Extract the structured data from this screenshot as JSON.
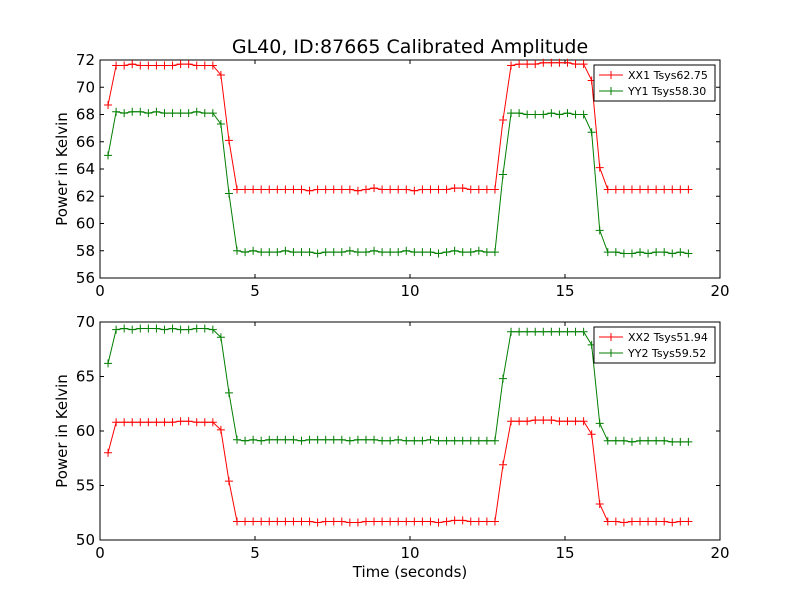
{
  "title": "GL40, ID:87665 Calibrated Amplitude",
  "chart_data": [
    {
      "type": "line",
      "xlabel": "",
      "ylabel": "Power in Kelvin",
      "xlim": [
        0,
        20
      ],
      "ylim": [
        56,
        72
      ],
      "xticks": [
        0,
        5,
        10,
        15,
        20
      ],
      "yticks": [
        56,
        58,
        60,
        62,
        64,
        66,
        68,
        70,
        72
      ],
      "grid": false,
      "legend_position": "top-right",
      "x": [
        0.26,
        0.52,
        0.78,
        1.04,
        1.3,
        1.56,
        1.82,
        2.08,
        2.34,
        2.6,
        2.86,
        3.12,
        3.38,
        3.64,
        3.9,
        4.16,
        4.42,
        4.68,
        4.94,
        5.2,
        5.46,
        5.72,
        5.98,
        6.24,
        6.5,
        6.76,
        7.02,
        7.28,
        7.54,
        7.8,
        8.06,
        8.32,
        8.58,
        8.84,
        9.1,
        9.36,
        9.62,
        9.88,
        10.14,
        10.4,
        10.66,
        10.92,
        11.18,
        11.44,
        11.7,
        11.96,
        12.22,
        12.48,
        12.74,
        13.0,
        13.26,
        13.52,
        13.78,
        14.04,
        14.3,
        14.56,
        14.82,
        15.08,
        15.34,
        15.6,
        15.86,
        16.12,
        16.38,
        16.64,
        16.9,
        17.16,
        17.42,
        17.68,
        17.94,
        18.2,
        18.46,
        18.72,
        18.98
      ],
      "series": [
        {
          "name": "XX1 Tsys62.75",
          "color": "#ff0000",
          "values": [
            68.7,
            71.6,
            71.6,
            71.7,
            71.6,
            71.6,
            71.6,
            71.6,
            71.6,
            71.7,
            71.7,
            71.6,
            71.6,
            71.6,
            70.9,
            66.1,
            62.5,
            62.5,
            62.5,
            62.5,
            62.5,
            62.5,
            62.5,
            62.5,
            62.5,
            62.4,
            62.5,
            62.5,
            62.5,
            62.5,
            62.5,
            62.4,
            62.5,
            62.6,
            62.5,
            62.5,
            62.5,
            62.5,
            62.4,
            62.5,
            62.5,
            62.5,
            62.5,
            62.6,
            62.6,
            62.5,
            62.5,
            62.5,
            62.5,
            67.6,
            71.6,
            71.7,
            71.7,
            71.7,
            71.8,
            71.8,
            71.8,
            71.8,
            71.7,
            71.7,
            70.5,
            64.1,
            62.5,
            62.5,
            62.5,
            62.5,
            62.5,
            62.5,
            62.5,
            62.5,
            62.5,
            62.5,
            62.5
          ]
        },
        {
          "name": "YY1 Tsys58.30",
          "color": "#007f00",
          "values": [
            65.0,
            68.2,
            68.1,
            68.2,
            68.2,
            68.1,
            68.2,
            68.1,
            68.1,
            68.1,
            68.1,
            68.2,
            68.1,
            68.1,
            67.3,
            62.2,
            58.0,
            57.9,
            58.0,
            57.9,
            57.9,
            57.9,
            58.0,
            57.9,
            57.9,
            57.9,
            57.8,
            57.9,
            57.9,
            57.9,
            58.0,
            57.9,
            57.9,
            58.0,
            57.9,
            57.9,
            57.9,
            58.0,
            57.9,
            57.9,
            57.9,
            57.8,
            57.9,
            58.0,
            57.9,
            57.9,
            58.0,
            57.9,
            57.9,
            63.6,
            68.1,
            68.1,
            68.0,
            68.0,
            68.0,
            68.1,
            68.0,
            68.1,
            68.0,
            68.0,
            66.7,
            59.5,
            57.9,
            57.9,
            57.8,
            57.8,
            57.9,
            57.8,
            57.9,
            57.9,
            57.8,
            57.9,
            57.8
          ]
        }
      ]
    },
    {
      "type": "line",
      "xlabel": "Time (seconds)",
      "ylabel": "Power in Kelvin",
      "xlim": [
        0,
        20
      ],
      "ylim": [
        50,
        70
      ],
      "xticks": [
        0,
        5,
        10,
        15,
        20
      ],
      "yticks": [
        50,
        55,
        60,
        65,
        70
      ],
      "grid": false,
      "legend_position": "top-right",
      "x": [
        0.26,
        0.52,
        0.78,
        1.04,
        1.3,
        1.56,
        1.82,
        2.08,
        2.34,
        2.6,
        2.86,
        3.12,
        3.38,
        3.64,
        3.9,
        4.16,
        4.42,
        4.68,
        4.94,
        5.2,
        5.46,
        5.72,
        5.98,
        6.24,
        6.5,
        6.76,
        7.02,
        7.28,
        7.54,
        7.8,
        8.06,
        8.32,
        8.58,
        8.84,
        9.1,
        9.36,
        9.62,
        9.88,
        10.14,
        10.4,
        10.66,
        10.92,
        11.18,
        11.44,
        11.7,
        11.96,
        12.22,
        12.48,
        12.74,
        13.0,
        13.26,
        13.52,
        13.78,
        14.04,
        14.3,
        14.56,
        14.82,
        15.08,
        15.34,
        15.6,
        15.86,
        16.12,
        16.38,
        16.64,
        16.9,
        17.16,
        17.42,
        17.68,
        17.94,
        18.2,
        18.46,
        18.72,
        18.98
      ],
      "series": [
        {
          "name": "XX2 Tsys51.94",
          "color": "#ff0000",
          "values": [
            58.0,
            60.8,
            60.8,
            60.8,
            60.8,
            60.8,
            60.8,
            60.8,
            60.8,
            60.9,
            60.9,
            60.8,
            60.8,
            60.8,
            60.1,
            55.4,
            51.7,
            51.7,
            51.7,
            51.7,
            51.7,
            51.7,
            51.7,
            51.7,
            51.7,
            51.7,
            51.6,
            51.7,
            51.7,
            51.7,
            51.6,
            51.6,
            51.7,
            51.7,
            51.7,
            51.7,
            51.7,
            51.7,
            51.7,
            51.7,
            51.7,
            51.6,
            51.7,
            51.8,
            51.8,
            51.7,
            51.7,
            51.7,
            51.7,
            56.9,
            60.9,
            60.9,
            60.9,
            61.0,
            61.0,
            61.0,
            60.9,
            60.9,
            60.9,
            60.9,
            59.7,
            53.3,
            51.7,
            51.7,
            51.6,
            51.7,
            51.7,
            51.7,
            51.7,
            51.7,
            51.6,
            51.7,
            51.7
          ]
        },
        {
          "name": "YY2 Tsys59.52",
          "color": "#007f00",
          "values": [
            66.2,
            69.3,
            69.4,
            69.3,
            69.4,
            69.4,
            69.4,
            69.3,
            69.4,
            69.3,
            69.3,
            69.4,
            69.4,
            69.3,
            68.6,
            63.5,
            59.2,
            59.1,
            59.2,
            59.1,
            59.2,
            59.2,
            59.2,
            59.2,
            59.1,
            59.2,
            59.2,
            59.2,
            59.2,
            59.2,
            59.1,
            59.2,
            59.2,
            59.2,
            59.1,
            59.1,
            59.2,
            59.1,
            59.1,
            59.1,
            59.2,
            59.1,
            59.1,
            59.1,
            59.1,
            59.1,
            59.1,
            59.1,
            59.1,
            64.8,
            69.1,
            69.1,
            69.1,
            69.1,
            69.1,
            69.1,
            69.1,
            69.1,
            69.1,
            69.1,
            67.9,
            60.7,
            59.1,
            59.1,
            59.1,
            59.0,
            59.1,
            59.1,
            59.1,
            59.1,
            59.0,
            59.0,
            59.0
          ]
        }
      ]
    }
  ]
}
